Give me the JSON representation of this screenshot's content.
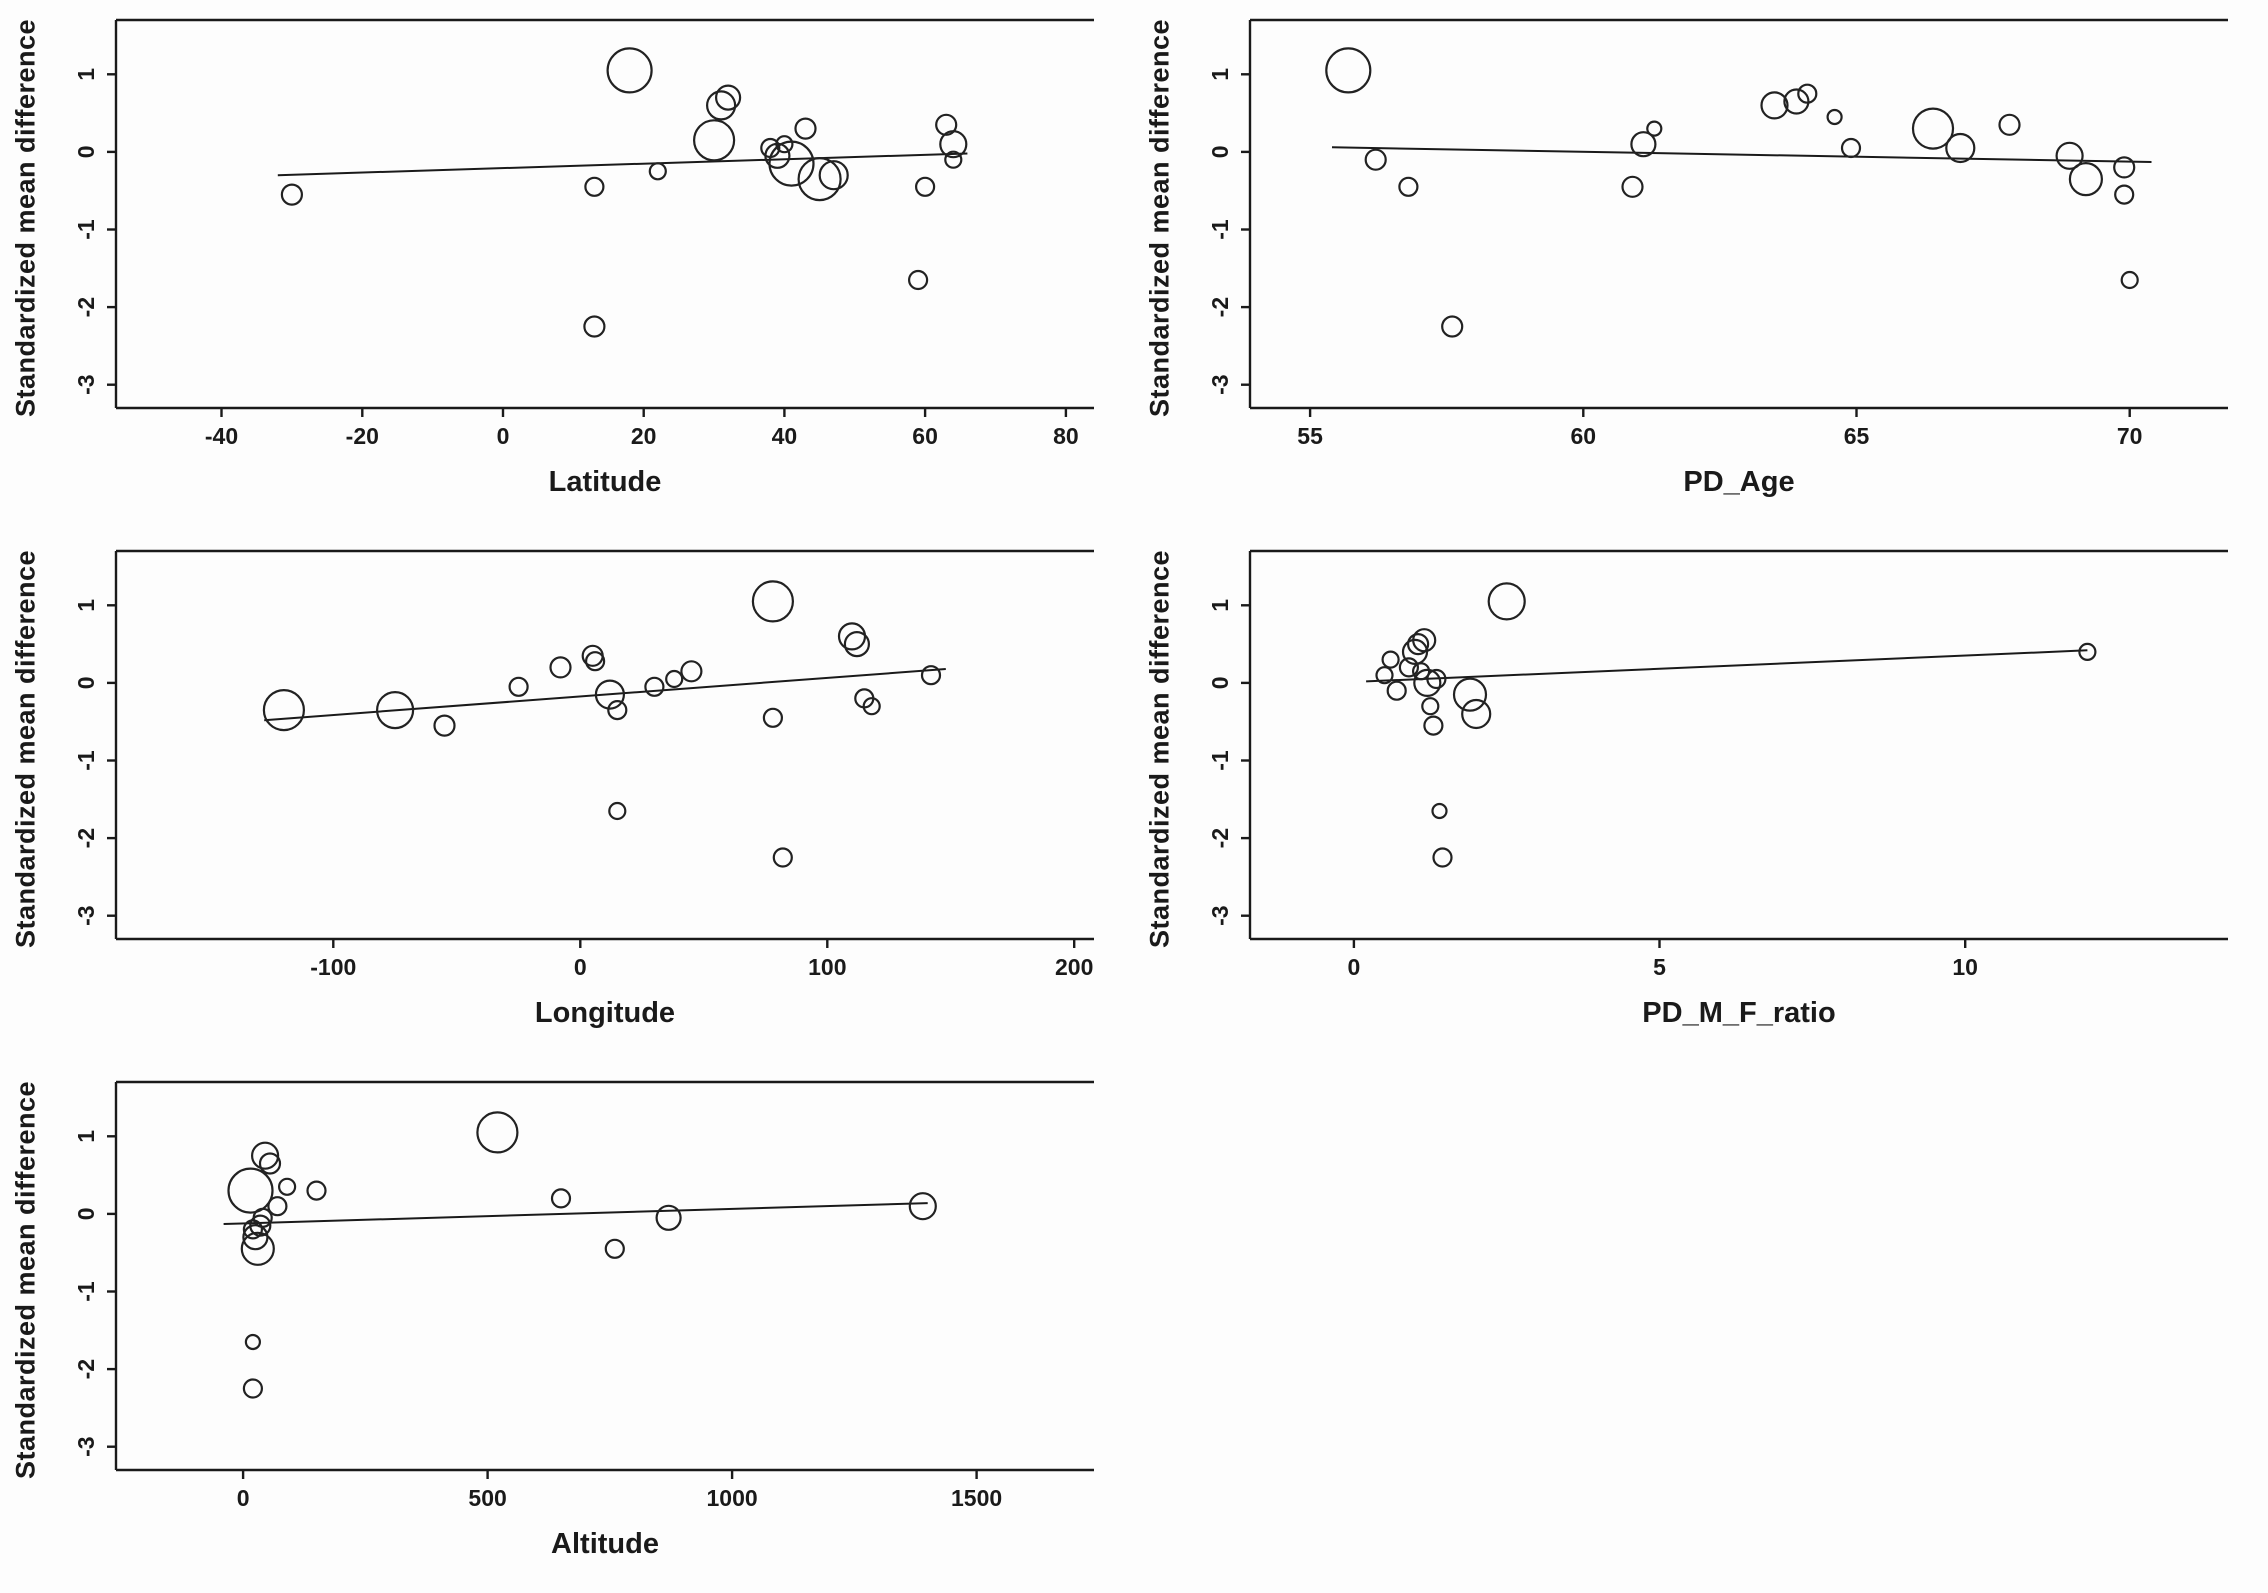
{
  "figure": {
    "background": "#fdfdfd",
    "stroke_color": "#1a1a1a",
    "shared_y_axis_label": "Standardized mean difference",
    "layout": "2x3 grid of bubble scatter plots, bottom-right cell empty"
  },
  "chart_data": [
    {
      "type": "scatter",
      "title": "",
      "xlabel": "Latitude",
      "ylabel": "Standardized mean difference",
      "xlim": [
        -55,
        84
      ],
      "ylim": [
        -3.3,
        1.7
      ],
      "xticks": [
        -40,
        -20,
        0,
        20,
        40,
        60,
        80
      ],
      "yticks": [
        -3,
        -2,
        -1,
        0,
        1
      ],
      "grid": false,
      "marker": "open-circle-bubble",
      "point_format": "[x, standardized_mean_difference, bubble_radius_px]",
      "regression_line": {
        "x1": -32,
        "y1": -0.3,
        "x2": 66,
        "y2": -0.02
      },
      "points": [
        [
          -30,
          -0.55,
          10
        ],
        [
          13,
          -0.45,
          9
        ],
        [
          13,
          -2.25,
          10
        ],
        [
          18,
          1.05,
          22
        ],
        [
          22,
          -0.25,
          8
        ],
        [
          30,
          0.15,
          20
        ],
        [
          31,
          0.6,
          14
        ],
        [
          32,
          0.7,
          12
        ],
        [
          38,
          0.05,
          9
        ],
        [
          39,
          -0.05,
          12
        ],
        [
          40,
          0.1,
          8
        ],
        [
          41,
          -0.15,
          22
        ],
        [
          43,
          0.3,
          10
        ],
        [
          45,
          -0.35,
          21
        ],
        [
          47,
          -0.3,
          14
        ],
        [
          59,
          -1.65,
          9
        ],
        [
          60,
          -0.45,
          9
        ],
        [
          63,
          0.35,
          10
        ],
        [
          64,
          0.1,
          13
        ],
        [
          64,
          -0.1,
          8
        ]
      ]
    },
    {
      "type": "scatter",
      "title": "",
      "xlabel": "PD_Age",
      "ylabel": "Standardized mean difference",
      "xlim": [
        53.9,
        71.8
      ],
      "ylim": [
        -3.3,
        1.7
      ],
      "xticks": [
        55,
        60,
        65,
        70
      ],
      "yticks": [
        -3,
        -2,
        -1,
        0,
        1
      ],
      "grid": false,
      "marker": "open-circle-bubble",
      "point_format": "[x, standardized_mean_difference, bubble_radius_px]",
      "regression_line": {
        "x1": 55.4,
        "y1": 0.06,
        "x2": 70.4,
        "y2": -0.13
      },
      "points": [
        [
          55.7,
          1.05,
          22
        ],
        [
          56.2,
          -0.1,
          10
        ],
        [
          56.8,
          -0.45,
          9
        ],
        [
          57.6,
          -2.25,
          10
        ],
        [
          60.9,
          -0.45,
          10
        ],
        [
          61.1,
          0.1,
          12
        ],
        [
          61.3,
          0.3,
          7
        ],
        [
          63.5,
          0.6,
          13
        ],
        [
          63.9,
          0.65,
          12
        ],
        [
          64.1,
          0.75,
          9
        ],
        [
          64.6,
          0.45,
          7
        ],
        [
          64.9,
          0.05,
          9
        ],
        [
          66.4,
          0.3,
          20
        ],
        [
          66.9,
          0.05,
          14
        ],
        [
          67.8,
          0.35,
          10
        ],
        [
          68.9,
          -0.05,
          13
        ],
        [
          69.2,
          -0.35,
          16
        ],
        [
          69.9,
          -0.2,
          10
        ],
        [
          69.9,
          -0.55,
          9
        ],
        [
          70.0,
          -1.65,
          8
        ]
      ]
    },
    {
      "type": "scatter",
      "title": "",
      "xlabel": "Longitude",
      "ylabel": "Standardized mean difference",
      "xlim": [
        -188,
        208
      ],
      "ylim": [
        -3.3,
        1.7
      ],
      "xticks": [
        -100,
        0,
        100,
        200
      ],
      "yticks": [
        -3,
        -2,
        -1,
        0,
        1
      ],
      "grid": false,
      "marker": "open-circle-bubble",
      "point_format": "[x, standardized_mean_difference, bubble_radius_px]",
      "regression_line": {
        "x1": -128,
        "y1": -0.48,
        "x2": 148,
        "y2": 0.18
      },
      "points": [
        [
          -120,
          -0.35,
          20
        ],
        [
          -75,
          -0.35,
          18
        ],
        [
          -55,
          -0.55,
          10
        ],
        [
          -25,
          -0.05,
          9
        ],
        [
          -8,
          0.2,
          10
        ],
        [
          5,
          0.35,
          10
        ],
        [
          6,
          0.28,
          9
        ],
        [
          12,
          -0.15,
          14
        ],
        [
          15,
          -0.35,
          9
        ],
        [
          15,
          -1.65,
          8
        ],
        [
          30,
          -0.05,
          9
        ],
        [
          38,
          0.05,
          8
        ],
        [
          45,
          0.15,
          10
        ],
        [
          78,
          1.05,
          20
        ],
        [
          78,
          -0.45,
          9
        ],
        [
          82,
          -2.25,
          9
        ],
        [
          110,
          0.6,
          13
        ],
        [
          112,
          0.5,
          12
        ],
        [
          115,
          -0.2,
          9
        ],
        [
          118,
          -0.3,
          8
        ],
        [
          142,
          0.1,
          9
        ]
      ]
    },
    {
      "type": "scatter",
      "title": "",
      "xlabel": "PD_M_F_ratio",
      "ylabel": "Standardized mean difference",
      "xlim": [
        -1.7,
        14.3
      ],
      "ylim": [
        -3.3,
        1.7
      ],
      "xticks": [
        0,
        5,
        10
      ],
      "yticks": [
        -3,
        -2,
        -1,
        0,
        1
      ],
      "grid": false,
      "marker": "open-circle-bubble",
      "point_format": "[x, standardized_mean_difference, bubble_radius_px]",
      "regression_line": {
        "x1": 0.2,
        "y1": 0.02,
        "x2": 12.0,
        "y2": 0.42
      },
      "points": [
        [
          0.5,
          0.1,
          8
        ],
        [
          0.6,
          0.3,
          8
        ],
        [
          0.7,
          -0.1,
          9
        ],
        [
          0.9,
          0.2,
          9
        ],
        [
          1.0,
          0.4,
          12
        ],
        [
          1.05,
          0.5,
          10
        ],
        [
          1.1,
          0.15,
          8
        ],
        [
          1.15,
          0.55,
          11
        ],
        [
          1.2,
          0.0,
          13
        ],
        [
          1.25,
          -0.3,
          8
        ],
        [
          1.3,
          -0.55,
          9
        ],
        [
          1.35,
          0.05,
          9
        ],
        [
          1.4,
          -1.65,
          7
        ],
        [
          1.45,
          -2.25,
          9
        ],
        [
          1.9,
          -0.15,
          16
        ],
        [
          2.0,
          -0.4,
          14
        ],
        [
          2.5,
          1.05,
          18
        ],
        [
          12.0,
          0.4,
          8
        ]
      ]
    },
    {
      "type": "scatter",
      "title": "",
      "xlabel": "Altitude",
      "ylabel": "Standardized mean difference",
      "xlim": [
        -260,
        1740
      ],
      "ylim": [
        -3.3,
        1.7
      ],
      "xticks": [
        0,
        500,
        1000,
        1500
      ],
      "yticks": [
        -3,
        -2,
        -1,
        0,
        1
      ],
      "grid": false,
      "marker": "open-circle-bubble",
      "point_format": "[x, standardized_mean_difference, bubble_radius_px]",
      "regression_line": {
        "x1": -40,
        "y1": -0.13,
        "x2": 1400,
        "y2": 0.14
      },
      "points": [
        [
          15,
          0.3,
          22
        ],
        [
          20,
          -0.2,
          9
        ],
        [
          25,
          -0.3,
          12
        ],
        [
          30,
          -0.45,
          16
        ],
        [
          35,
          -0.15,
          10
        ],
        [
          40,
          -0.05,
          9
        ],
        [
          45,
          0.75,
          13
        ],
        [
          55,
          0.65,
          10
        ],
        [
          20,
          -1.65,
          7
        ],
        [
          20,
          -2.25,
          9
        ],
        [
          70,
          0.1,
          9
        ],
        [
          90,
          0.35,
          8
        ],
        [
          150,
          0.3,
          9
        ],
        [
          520,
          1.05,
          20
        ],
        [
          650,
          0.2,
          9
        ],
        [
          760,
          -0.45,
          9
        ],
        [
          870,
          -0.05,
          12
        ],
        [
          1390,
          0.1,
          13
        ]
      ]
    }
  ]
}
